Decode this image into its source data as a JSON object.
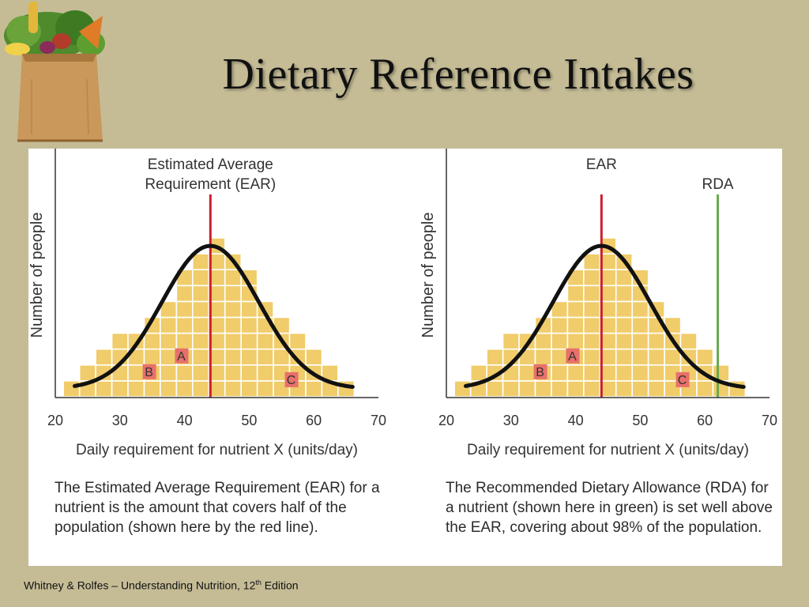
{
  "slide": {
    "title": "Dietary Reference Intakes",
    "footer_prefix": "Whitney  & Rolfes – Understanding Nutrition, 12",
    "footer_sup": "th",
    "footer_suffix": "  Edition"
  },
  "logo": {
    "icon": "grocery-bag-icon"
  },
  "colors": {
    "background": "#c5bc96",
    "bars": "#f0cc6a",
    "curve": "#111111",
    "ear_line": "#cc1f2b",
    "rda_line": "#6aa84f",
    "region_box": "#e8706a"
  },
  "chart_data": [
    {
      "type": "bar",
      "title": "Estimated Average Requirement (EAR)",
      "title_lines": [
        "Estimated Average",
        "Requirement (EAR)"
      ],
      "xlabel": "Daily requirement for nutrient X (units/day)",
      "ylabel": "Number of people",
      "xlim": [
        20,
        70
      ],
      "xticks": [
        20,
        30,
        40,
        50,
        60,
        70
      ],
      "ylim": [
        0,
        10
      ],
      "grid": true,
      "categories": [
        22.5,
        25,
        27.5,
        30,
        32.5,
        35,
        37.5,
        40,
        42.5,
        45,
        47.5,
        50,
        52.5,
        55,
        57.5,
        60,
        62.5,
        65
      ],
      "values": [
        1,
        2,
        3,
        4,
        4,
        5,
        6,
        8,
        9,
        10,
        9,
        8,
        6,
        5,
        4,
        3,
        2,
        1
      ],
      "curve": {
        "type": "normal",
        "mean": 44,
        "sd": 7.5,
        "peak": 9.5,
        "baseline": 0.5
      },
      "ear": {
        "x": 44
      },
      "regions": [
        {
          "label": "A",
          "x": 39.5,
          "y": 2.5
        },
        {
          "label": "B",
          "x": 34.5,
          "y": 1.5
        },
        {
          "label": "C",
          "x": 56.5,
          "y": 1.0
        }
      ],
      "caption": "The Estimated Average Requirement (EAR) for a nutrient is the amount that covers half of the population (shown here by the red line)."
    },
    {
      "type": "bar",
      "title": "",
      "ear_label": "EAR",
      "rda_label": "RDA",
      "xlabel": "Daily requirement for nutrient X (units/day)",
      "ylabel": "Number of people",
      "xlim": [
        20,
        70
      ],
      "xticks": [
        20,
        30,
        40,
        50,
        60,
        70
      ],
      "ylim": [
        0,
        10
      ],
      "grid": true,
      "categories": [
        22.5,
        25,
        27.5,
        30,
        32.5,
        35,
        37.5,
        40,
        42.5,
        45,
        47.5,
        50,
        52.5,
        55,
        57.5,
        60,
        62.5,
        65
      ],
      "values": [
        1,
        2,
        3,
        4,
        4,
        5,
        6,
        8,
        9,
        10,
        9,
        8,
        6,
        5,
        4,
        3,
        2,
        1
      ],
      "curve": {
        "type": "normal",
        "mean": 44,
        "sd": 7.5,
        "peak": 9.5,
        "baseline": 0.5
      },
      "ear": {
        "x": 44
      },
      "rda": {
        "x": 62
      },
      "regions": [
        {
          "label": "A",
          "x": 39.5,
          "y": 2.5
        },
        {
          "label": "B",
          "x": 34.5,
          "y": 1.5
        },
        {
          "label": "C",
          "x": 56.5,
          "y": 1.0
        }
      ],
      "caption": "The Recommended Dietary Allowance (RDA) for a nutrient (shown here in green) is set well above the EAR, covering about 98% of the population."
    }
  ]
}
